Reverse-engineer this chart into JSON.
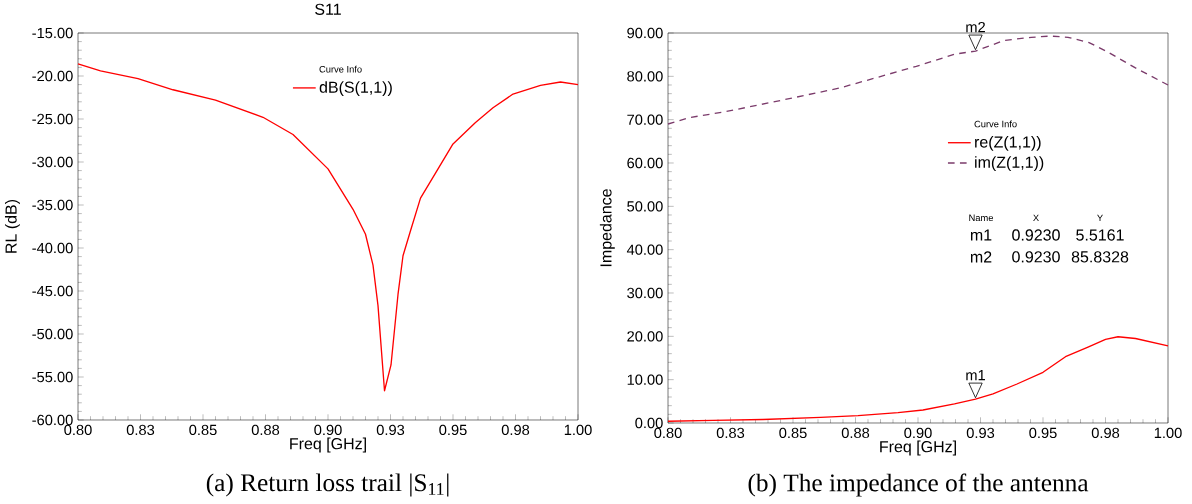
{
  "chart_data": [
    {
      "type": "line",
      "title": "S11",
      "xlabel": "Freq [GHz]",
      "ylabel": "RL (dB)",
      "legend_title": "Curve Info",
      "legend": "top",
      "x": [
        0.8,
        0.809,
        0.824,
        0.838,
        0.855,
        0.874,
        0.886,
        0.9,
        0.91,
        0.915,
        0.918,
        0.92,
        0.9226,
        0.9252,
        0.928,
        0.93,
        0.933,
        0.937,
        0.943,
        0.95,
        0.959,
        0.966,
        0.974,
        0.985,
        0.993,
        1.0
      ],
      "series": [
        {
          "name": "dB(S(1,1))",
          "color": "#ff0000",
          "values": [
            -18.6,
            -19.4,
            -20.3,
            -21.6,
            -22.8,
            -24.8,
            -26.8,
            -30.8,
            -35.5,
            -38.4,
            -42.0,
            -46.7,
            -56.6,
            -53.6,
            -45.4,
            -40.9,
            -38.0,
            -34.2,
            -31.3,
            -27.9,
            -25.4,
            -23.7,
            -22.1,
            -21.1,
            -20.7,
            -21.0
          ]
        }
      ],
      "xlim": [
        0.8,
        1.0
      ],
      "ylim": [
        -60,
        -15
      ],
      "xticks": [
        {
          "value": 0.8,
          "label": "0.80"
        },
        {
          "value": 0.825,
          "label": "0.83"
        },
        {
          "value": 0.85,
          "label": "0.85"
        },
        {
          "value": 0.875,
          "label": "0.88"
        },
        {
          "value": 0.9,
          "label": "0.90"
        },
        {
          "value": 0.925,
          "label": "0.93"
        },
        {
          "value": 0.95,
          "label": "0.95"
        },
        {
          "value": 0.975,
          "label": "0.98"
        },
        {
          "value": 1.0,
          "label": "1.00"
        }
      ],
      "yticks": [
        {
          "value": -60,
          "label": "-60.00"
        },
        {
          "value": -55,
          "label": "-55.00"
        },
        {
          "value": -50,
          "label": "-50.00"
        },
        {
          "value": -45,
          "label": "-45.00"
        },
        {
          "value": -40,
          "label": "-40.00"
        },
        {
          "value": -35,
          "label": "-35.00"
        },
        {
          "value": -30,
          "label": "-30.00"
        },
        {
          "value": -25,
          "label": "-25.00"
        },
        {
          "value": -20,
          "label": "-20.00"
        },
        {
          "value": -15,
          "label": "-15.00"
        }
      ],
      "grid": false,
      "line_style": "solid",
      "annotations": [
        "(a) Return loss trail |S$_{11}$|"
      ]
    },
    {
      "type": "line",
      "xlabel": "Freq [GHz]",
      "ylabel": "Impedance",
      "legend_title": "Curve Info",
      "legend": "right",
      "series": [
        {
          "name": "re(Z(1,1))",
          "color": "#ff0000",
          "line_style": "solid",
          "x": [
            0.8,
            0.818,
            0.838,
            0.861,
            0.876,
            0.892,
            0.902,
            0.9146,
            0.923,
            0.93,
            0.9396,
            0.95,
            0.959,
            0.968,
            0.975,
            0.98,
            0.987,
            1.0
          ],
          "values": [
            0.4,
            0.6,
            0.8,
            1.3,
            1.7,
            2.4,
            3.0,
            4.4,
            5.5161,
            6.7,
            9.0,
            11.7,
            15.3,
            17.5,
            19.3,
            19.9,
            19.5,
            17.8
          ]
        },
        {
          "name": "im(Z(1,1))",
          "color": "#7b3b6b",
          "line_style": "dashed",
          "x": [
            0.8,
            0.8087,
            0.8226,
            0.8456,
            0.8686,
            0.884,
            0.8993,
            0.9146,
            0.923,
            0.9346,
            0.9453,
            0.953,
            0.96,
            0.9684,
            0.976,
            0.9868,
            1.0
          ],
          "values": [
            69.0,
            70.5,
            71.8,
            74.5,
            77.3,
            79.8,
            82.3,
            85.1,
            85.8328,
            88.3,
            89.0,
            89.3,
            89.0,
            87.8,
            85.6,
            82.0,
            78.0
          ]
        }
      ],
      "xlim": [
        0.8,
        1.0
      ],
      "ylim": [
        0,
        90
      ],
      "xticks": [
        {
          "value": 0.8,
          "label": "0.80"
        },
        {
          "value": 0.825,
          "label": "0.83"
        },
        {
          "value": 0.85,
          "label": "0.85"
        },
        {
          "value": 0.875,
          "label": "0.88"
        },
        {
          "value": 0.9,
          "label": "0.90"
        },
        {
          "value": 0.925,
          "label": "0.93"
        },
        {
          "value": 0.95,
          "label": "0.95"
        },
        {
          "value": 0.975,
          "label": "0.98"
        },
        {
          "value": 1.0,
          "label": "1.00"
        }
      ],
      "yticks": [
        {
          "value": 0,
          "label": "0.00"
        },
        {
          "value": 10,
          "label": "10.00"
        },
        {
          "value": 20,
          "label": "20.00"
        },
        {
          "value": 30,
          "label": "30.00"
        },
        {
          "value": 40,
          "label": "40.00"
        },
        {
          "value": 50,
          "label": "50.00"
        },
        {
          "value": 60,
          "label": "60.00"
        },
        {
          "value": 70,
          "label": "70.00"
        },
        {
          "value": 80,
          "label": "80.00"
        },
        {
          "value": 90,
          "label": "90.00"
        }
      ],
      "grid": false,
      "annotations": [
        {
          "text": "m1",
          "x": 0.923,
          "y": 5.5161
        },
        {
          "text": "m2",
          "x": 0.923,
          "y": 85.8328
        },
        "Name",
        "X",
        "Y",
        "m1",
        "0.9230",
        "5.5161",
        "m2",
        "0.9230",
        "85.8328",
        "(b) The impedance of the antenna"
      ]
    }
  ]
}
